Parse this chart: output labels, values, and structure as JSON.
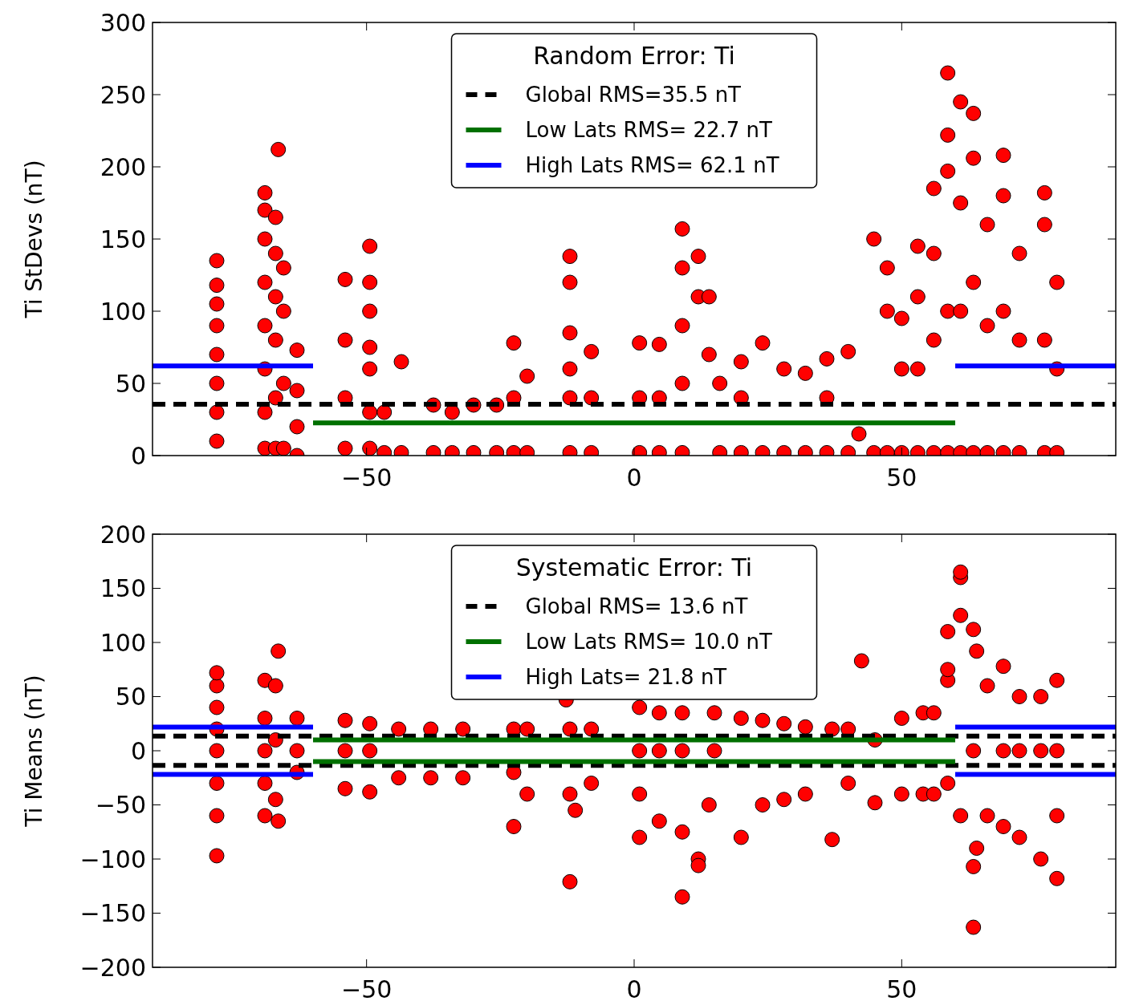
{
  "chart_data": [
    {
      "type": "scatter",
      "ylabel": "Ti StDevs (nT)",
      "legend_title": "Random Error: Ti",
      "legend": "top",
      "grid": false,
      "xlim": [
        -90,
        90
      ],
      "xticks": [
        -50,
        0,
        50
      ],
      "ylim": [
        0,
        300
      ],
      "yticks": [
        0,
        50,
        100,
        150,
        200,
        250,
        300
      ],
      "series": [
        {
          "color": "#ff0000",
          "marker": "circle",
          "x": [
            -78,
            -78,
            -78,
            -78,
            -78,
            -78,
            -78,
            -78,
            -69,
            -69,
            -69,
            -69,
            -69,
            -69,
            -69,
            -69,
            -67,
            -67,
            -67,
            -67,
            -67,
            -67,
            -66.5,
            -65.5,
            -65.5,
            -65.5,
            -65.5,
            -63,
            -63,
            -63,
            -63,
            -54,
            -54,
            -54,
            -54,
            -49.4,
            -49.4,
            -49.4,
            -49.4,
            -49.4,
            -49.4,
            -49.4,
            -46.7,
            -46.7,
            -43.5,
            -43.5,
            -37.5,
            -37.5,
            -34,
            -34,
            -30,
            -30,
            -25.7,
            -25.7,
            -22.5,
            -22.5,
            -22.5,
            -20,
            -20,
            -12,
            -12,
            -12,
            -12,
            -12,
            -12,
            -8,
            -8,
            -8,
            1,
            1,
            1,
            4.7,
            4.7,
            4.7,
            9,
            9,
            9,
            9,
            9,
            12,
            12,
            14,
            14,
            16,
            16,
            20,
            20,
            20,
            24,
            24,
            28,
            28,
            32,
            32,
            36,
            36,
            36,
            40,
            40,
            42,
            44.8,
            44.8,
            47.3,
            47.3,
            47.3,
            50,
            50,
            50,
            53,
            53,
            53,
            53,
            56,
            56,
            56,
            56,
            58.6,
            58.6,
            58.6,
            58.6,
            58.6,
            61,
            61,
            61,
            61,
            63.4,
            63.4,
            63.4,
            63.4,
            66,
            66,
            66,
            69,
            69,
            69,
            69,
            72,
            72,
            72,
            76.7,
            76.7,
            76.7,
            76.7,
            79,
            79,
            79
          ],
          "values": [
            10,
            30,
            50,
            70,
            90,
            105,
            118,
            135,
            5,
            30,
            60,
            90,
            120,
            150,
            170,
            182,
            5,
            40,
            80,
            110,
            140,
            165,
            212,
            5,
            50,
            100,
            130,
            0,
            20,
            45,
            73,
            5,
            40,
            80,
            122,
            5,
            30,
            60,
            75,
            100,
            120,
            145,
            2,
            30,
            2,
            65,
            2,
            35,
            2,
            30,
            2,
            35,
            2,
            35,
            2,
            40,
            78,
            2,
            55,
            2,
            40,
            60,
            85,
            120,
            138,
            2,
            40,
            72,
            2,
            40,
            78,
            2,
            40,
            77,
            2,
            50,
            90,
            130,
            157,
            110,
            138,
            70,
            110,
            2,
            50,
            2,
            40,
            65,
            2,
            78,
            2,
            60,
            2,
            57,
            2,
            40,
            67,
            2,
            72,
            15,
            2,
            150,
            2,
            100,
            130,
            2,
            60,
            95,
            2,
            60,
            110,
            145,
            2,
            80,
            140,
            185,
            2,
            100,
            197,
            222,
            265,
            2,
            100,
            175,
            245,
            2,
            120,
            206,
            237,
            2,
            90,
            160,
            2,
            100,
            180,
            208,
            2,
            80,
            140,
            2,
            80,
            160,
            182,
            2,
            60,
            120
          ]
        },
        {
          "type": "line",
          "name": "Global RMS=35.5 nT",
          "color": "#000000",
          "line_style": "dashed",
          "x": [
            -90,
            90
          ],
          "values": [
            35.5,
            35.5
          ]
        },
        {
          "type": "line",
          "name": "Low Lats RMS= 22.7 nT",
          "color": "#007000",
          "line_style": "solid",
          "x": [
            -60,
            60
          ],
          "values": [
            22.7,
            22.7
          ]
        },
        {
          "type": "line",
          "name": "High Lats RMS= 62.1 nT",
          "color": "#0000ff",
          "line_style": "solid",
          "x": [
            -90,
            -60,
            0,
            60,
            90
          ],
          "values": [
            62.1,
            62.1,
            null,
            62.1,
            62.1
          ]
        }
      ]
    },
    {
      "type": "scatter",
      "ylabel": "Ti Means (nT)",
      "legend_title": "Systematic Error: Ti",
      "legend": "top",
      "grid": false,
      "xlim": [
        -90,
        90
      ],
      "xticks": [
        -50,
        0,
        50
      ],
      "ylim": [
        -200,
        200
      ],
      "yticks": [
        -200,
        -150,
        -100,
        -50,
        0,
        50,
        100,
        150,
        200
      ],
      "series": [
        {
          "color": "#ff0000",
          "marker": "circle",
          "x": [
            -78,
            -78,
            -78,
            -78,
            -78,
            -78,
            -78,
            -78,
            -69,
            -69,
            -69,
            -69,
            -69,
            -67,
            -67,
            -67,
            -66.5,
            -66.5,
            -63,
            -63,
            -63,
            -54,
            -54,
            -54,
            -49.4,
            -49.4,
            -49.4,
            -44,
            -44,
            -38,
            -38,
            -32,
            -32,
            -22.5,
            -22.5,
            -22.5,
            -20,
            -20,
            -12.7,
            -12,
            -12,
            -12,
            -11,
            -8,
            -8,
            1,
            1,
            1,
            1,
            4.7,
            4.7,
            4.7,
            9,
            9,
            9,
            9,
            12,
            12,
            14,
            15,
            15,
            20,
            20,
            24,
            24,
            28,
            28,
            32,
            32,
            37,
            37,
            40,
            40,
            42.5,
            45,
            45,
            50,
            50,
            54,
            54,
            56,
            56,
            58.6,
            58.6,
            58.6,
            58.6,
            61,
            61,
            61,
            61,
            63.4,
            63.4,
            63.4,
            63.4,
            64,
            64,
            66,
            66,
            69,
            69,
            69,
            72,
            72,
            72,
            76,
            76,
            76,
            79,
            79,
            79,
            79
          ],
          "values": [
            -97,
            -60,
            -30,
            0,
            20,
            40,
            60,
            72,
            -60,
            -30,
            0,
            30,
            65,
            -45,
            10,
            60,
            92,
            -65,
            -20,
            0,
            30,
            -35,
            0,
            28,
            -38,
            0,
            25,
            -25,
            20,
            -25,
            20,
            -25,
            20,
            -70,
            -20,
            20,
            -40,
            20,
            47,
            -121,
            -40,
            20,
            -55,
            -30,
            20,
            -80,
            -40,
            0,
            40,
            -65,
            0,
            35,
            -135,
            -75,
            0,
            35,
            -100,
            -106,
            -50,
            0,
            35,
            -80,
            30,
            -50,
            28,
            -45,
            25,
            -40,
            22,
            -82,
            20,
            -30,
            20,
            83,
            -48,
            10,
            -40,
            30,
            -40,
            35,
            -40,
            35,
            -30,
            65,
            75,
            110,
            -60,
            125,
            160,
            165,
            -163,
            -107,
            0,
            112,
            92,
            -90,
            -60,
            60,
            -70,
            0,
            78,
            -80,
            0,
            50,
            -100,
            0,
            50,
            -118,
            -60,
            0,
            65
          ]
        },
        {
          "type": "line",
          "name": "Global RMS= 13.6 nT",
          "color": "#000000",
          "line_style": "dashed",
          "x": [
            -90,
            90
          ],
          "values": [
            13.6,
            13.6
          ]
        },
        {
          "type": "line",
          "color": "#000000",
          "line_style": "dashed",
          "x": [
            -90,
            90
          ],
          "values": [
            -13.6,
            -13.6
          ]
        },
        {
          "type": "line",
          "name": "Low Lats RMS= 10.0 nT",
          "color": "#007000",
          "line_style": "solid",
          "x": [
            -60,
            60
          ],
          "values": [
            10.0,
            10.0
          ]
        },
        {
          "type": "line",
          "color": "#007000",
          "line_style": "solid",
          "x": [
            -60,
            60
          ],
          "values": [
            -10.0,
            -10.0
          ]
        },
        {
          "type": "line",
          "name": "High Lats= 21.8 nT",
          "color": "#0000ff",
          "line_style": "solid",
          "x": [
            -90,
            -60,
            0,
            60,
            90
          ],
          "values": [
            21.8,
            21.8,
            null,
            21.8,
            21.8
          ]
        },
        {
          "type": "line",
          "color": "#0000ff",
          "line_style": "solid",
          "x": [
            -90,
            -60,
            0,
            60,
            90
          ],
          "values": [
            -21.8,
            -21.8,
            null,
            -21.8,
            -21.8
          ]
        }
      ]
    }
  ]
}
